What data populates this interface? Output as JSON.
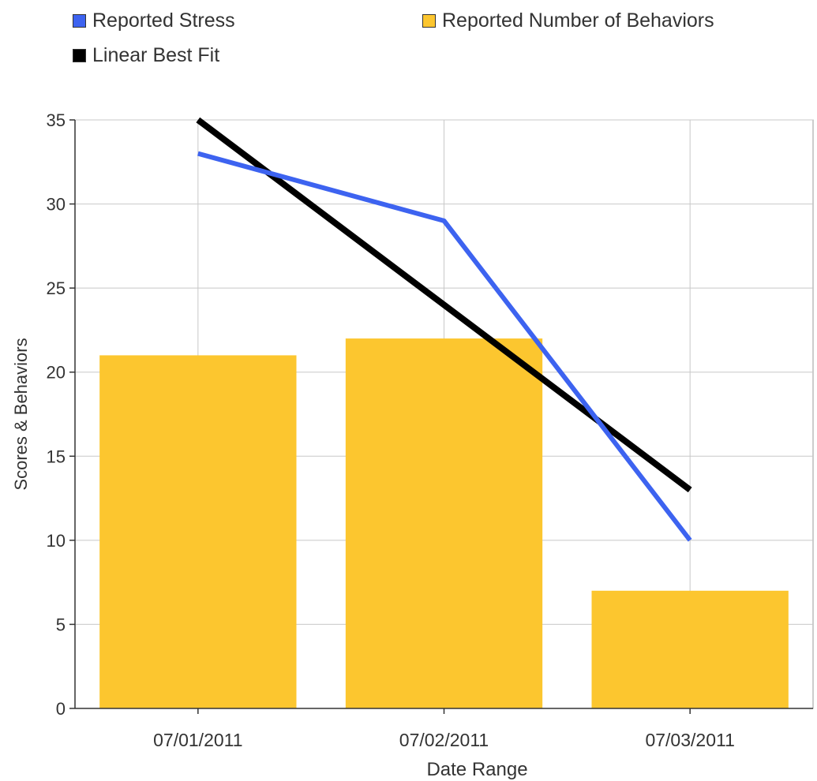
{
  "chart_data": {
    "type": "bar",
    "categories": [
      "07/01/2011",
      "07/02/2011",
      "07/03/2011"
    ],
    "series": [
      {
        "name": "Reported Number of Behaviors",
        "kind": "bar",
        "color": "#FCC62F",
        "values": [
          21,
          22,
          7
        ]
      },
      {
        "name": "Reported Stress",
        "kind": "line",
        "color": "#3D63F0",
        "values": [
          33,
          29,
          10
        ]
      },
      {
        "name": "Linear Best Fit",
        "kind": "line",
        "color": "#000000",
        "values": [
          35,
          24,
          13
        ]
      }
    ],
    "xlabel": "Date Range",
    "ylabel": "Scores & Behaviors",
    "ylim": [
      0,
      35
    ],
    "yticks": [
      0,
      5,
      10,
      15,
      20,
      25,
      30,
      35
    ],
    "grid": true,
    "legend_position": "top"
  },
  "legend": {
    "stress": {
      "label": "Reported Stress",
      "color": "#3D63F0"
    },
    "behaviors": {
      "label": "Reported Number of Behaviors",
      "color": "#FCC62F"
    },
    "fit": {
      "label": "Linear Best Fit",
      "color": "#000000"
    }
  }
}
